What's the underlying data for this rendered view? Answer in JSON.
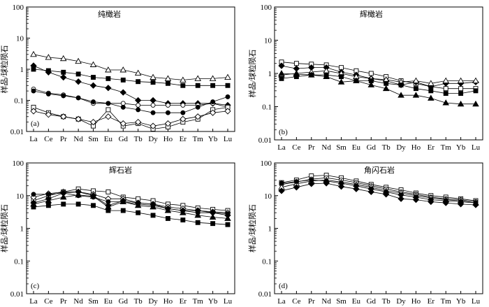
{
  "chart_data": [
    {
      "id": "a",
      "type": "line",
      "scale": "log",
      "title": "纯橄岩",
      "panel_label": "(a)",
      "ylabel": "样品/球粒陨石",
      "ylim": [
        0.01,
        100
      ],
      "yticks": [
        "100",
        "10",
        "1",
        "0.1",
        "0.01"
      ],
      "categories": [
        "La",
        "Ce",
        "Pr",
        "Nd",
        "Sm",
        "Eu",
        "Gd",
        "Tb",
        "Dy",
        "Ho",
        "Er",
        "Tm",
        "Yb",
        "Lu"
      ],
      "series": [
        {
          "marker": "open-triangle",
          "values": [
            3.0,
            2.4,
            2.2,
            1.8,
            1.4,
            0.95,
            0.95,
            0.75,
            0.55,
            0.5,
            0.45,
            0.5,
            0.5,
            0.55
          ]
        },
        {
          "marker": "filled-diamond",
          "values": [
            1.3,
            0.8,
            0.55,
            0.4,
            0.3,
            0.25,
            0.18,
            0.1,
            0.1,
            0.08,
            0.08,
            0.08,
            0.08,
            0.07
          ]
        },
        {
          "marker": "filled-square",
          "values": [
            1.0,
            0.9,
            0.8,
            0.7,
            0.55,
            0.5,
            0.45,
            0.4,
            0.38,
            0.35,
            0.3,
            0.3,
            0.3,
            0.3
          ]
        },
        {
          "marker": "open-circle",
          "values": [
            0.23,
            0.17,
            0.15,
            0.12,
            0.08,
            0.08,
            0.08,
            0.07,
            0.07,
            0.07,
            0.07,
            0.07,
            0.08,
            0.06
          ]
        },
        {
          "marker": "filled-circle",
          "values": [
            0.2,
            0.16,
            0.14,
            0.12,
            0.09,
            0.08,
            0.06,
            0.05,
            0.04,
            0.04,
            0.04,
            0.06,
            0.09,
            0.13
          ]
        },
        {
          "marker": "open-square",
          "values": [
            0.06,
            0.04,
            0.03,
            0.025,
            0.015,
            0.05,
            0.015,
            0.018,
            0.012,
            0.014,
            0.02,
            0.025,
            0.05,
            0.06
          ]
        },
        {
          "marker": "open-diamond",
          "values": [
            0.045,
            0.035,
            0.03,
            0.025,
            0.02,
            0.03,
            0.018,
            0.02,
            0.015,
            0.018,
            0.025,
            0.03,
            0.04,
            0.045
          ]
        }
      ]
    },
    {
      "id": "b",
      "type": "line",
      "scale": "log",
      "title": "辉橄岩",
      "panel_label": "(b)",
      "ylabel": "样品/球粒陨石",
      "ylim": [
        0.01,
        100
      ],
      "yticks": [
        "100",
        "10",
        "1",
        "0.1",
        "0.01"
      ],
      "categories": [
        "La",
        "Ce",
        "Pr",
        "Nd",
        "Sm",
        "Eu",
        "Gd",
        "Tb",
        "Dy",
        "Ho",
        "Er",
        "Tm",
        "Yb",
        "Lu"
      ],
      "series": [
        {
          "marker": "open-square",
          "values": [
            2.2,
            2.0,
            1.9,
            1.8,
            1.5,
            1.2,
            1.0,
            0.8,
            0.6,
            0.5,
            0.4,
            0.35,
            0.35,
            0.35
          ]
        },
        {
          "marker": "filled-diamond",
          "values": [
            1.7,
            1.4,
            1.5,
            1.5,
            1.1,
            0.9,
            0.7,
            0.6,
            0.45,
            0.55,
            0.4,
            0.5,
            0.5,
            0.55
          ]
        },
        {
          "marker": "open-triangle",
          "values": [
            0.9,
            1.0,
            1.1,
            1.2,
            1.0,
            0.8,
            0.7,
            0.65,
            0.55,
            0.6,
            0.5,
            0.6,
            0.6,
            0.6
          ]
        },
        {
          "marker": "filled-square",
          "values": [
            0.7,
            0.8,
            0.9,
            0.9,
            0.8,
            0.6,
            0.6,
            0.5,
            0.45,
            0.35,
            0.3,
            0.25,
            0.25,
            0.3
          ]
        },
        {
          "marker": "filled-triangle",
          "values": [
            1.0,
            0.95,
            0.9,
            0.8,
            0.55,
            0.6,
            0.45,
            0.35,
            0.22,
            0.22,
            0.18,
            0.13,
            0.12,
            0.12
          ]
        }
      ]
    },
    {
      "id": "c",
      "type": "line",
      "scale": "log",
      "title": "辉石岩",
      "panel_label": "(c)",
      "ylabel": "样品/球粒陨石",
      "ylim": [
        0.01,
        100
      ],
      "yticks": [
        "100",
        "10",
        "1",
        "0.1",
        "0.01"
      ],
      "categories": [
        "La",
        "Ce",
        "Pr",
        "Nd",
        "Sm",
        "Eu",
        "Gd",
        "Tb",
        "Dy",
        "Ho",
        "Er",
        "Tm",
        "Yb",
        "Lu"
      ],
      "series": [
        {
          "marker": "open-square",
          "values": [
            7.0,
            10.0,
            13.0,
            16.0,
            14.0,
            13.0,
            9.0,
            8.0,
            7.0,
            5.5,
            5.0,
            4.2,
            3.8,
            3.5
          ]
        },
        {
          "marker": "open-diamond",
          "values": [
            9.0,
            11.5,
            13.0,
            13.0,
            11.0,
            8.0,
            8.0,
            6.0,
            5.5,
            4.5,
            4.0,
            3.5,
            3.2,
            3.0
          ]
        },
        {
          "marker": "filled-circle",
          "values": [
            11.0,
            11.0,
            12.0,
            10.0,
            9.0,
            6.5,
            6.5,
            5.5,
            5.0,
            4.0,
            3.5,
            3.0,
            3.0,
            2.8
          ]
        },
        {
          "marker": "filled-diamond",
          "values": [
            6.0,
            8.0,
            12.0,
            13.0,
            10.0,
            5.0,
            7.0,
            6.0,
            5.5,
            4.0,
            3.5,
            3.5,
            3.0,
            2.5
          ]
        },
        {
          "marker": "filled-triangle",
          "values": [
            5.5,
            7.0,
            9.0,
            10.5,
            9.5,
            4.5,
            6.5,
            5.0,
            4.5,
            3.5,
            3.0,
            2.5,
            2.2,
            2.0
          ]
        },
        {
          "marker": "filled-square",
          "values": [
            4.5,
            5.0,
            5.5,
            5.5,
            5.0,
            3.5,
            3.5,
            3.0,
            2.5,
            2.0,
            1.8,
            1.5,
            1.4,
            1.3
          ]
        }
      ]
    },
    {
      "id": "d",
      "type": "line",
      "scale": "log",
      "title": "角闪石岩",
      "panel_label": "(d)",
      "ylabel": "样品/球粒陨石",
      "ylim": [
        0.01,
        100
      ],
      "yticks": [
        "100",
        "10",
        "1",
        "0.1",
        "0.01"
      ],
      "categories": [
        "La",
        "Ce",
        "Pr",
        "Nd",
        "Sm",
        "Eu",
        "Gd",
        "Tb",
        "Dy",
        "Ho",
        "Er",
        "Tm",
        "Yb",
        "Lu"
      ],
      "series": [
        {
          "marker": "open-square",
          "values": [
            25.0,
            30.0,
            40.0,
            42.0,
            35.0,
            28.0,
            22.0,
            18.0,
            15.0,
            12.0,
            10.0,
            9.0,
            8.0,
            7.0
          ]
        },
        {
          "marker": "open-circle",
          "values": [
            22.0,
            26.0,
            32.0,
            35.0,
            30.0,
            25.0,
            20.0,
            16.0,
            13.0,
            11.0,
            9.0,
            8.0,
            7.5,
            6.5
          ]
        },
        {
          "marker": "open-triangle",
          "values": [
            18.0,
            23.0,
            28.0,
            30.0,
            26.0,
            22.0,
            18.0,
            14.0,
            12.0,
            10.0,
            8.5,
            7.5,
            7.0,
            6.0
          ]
        },
        {
          "marker": "filled-circle",
          "values": [
            24.0,
            27.0,
            30.0,
            28.0,
            24.0,
            20.0,
            16.0,
            13.0,
            10.5,
            9.0,
            7.5,
            7.0,
            6.5,
            6.0
          ]
        },
        {
          "marker": "filled-diamond",
          "values": [
            14.0,
            18.0,
            23.0,
            24.0,
            19.0,
            16.0,
            13.0,
            11.0,
            8.0,
            7.5,
            6.5,
            6.0,
            5.5,
            5.2
          ]
        }
      ]
    }
  ]
}
